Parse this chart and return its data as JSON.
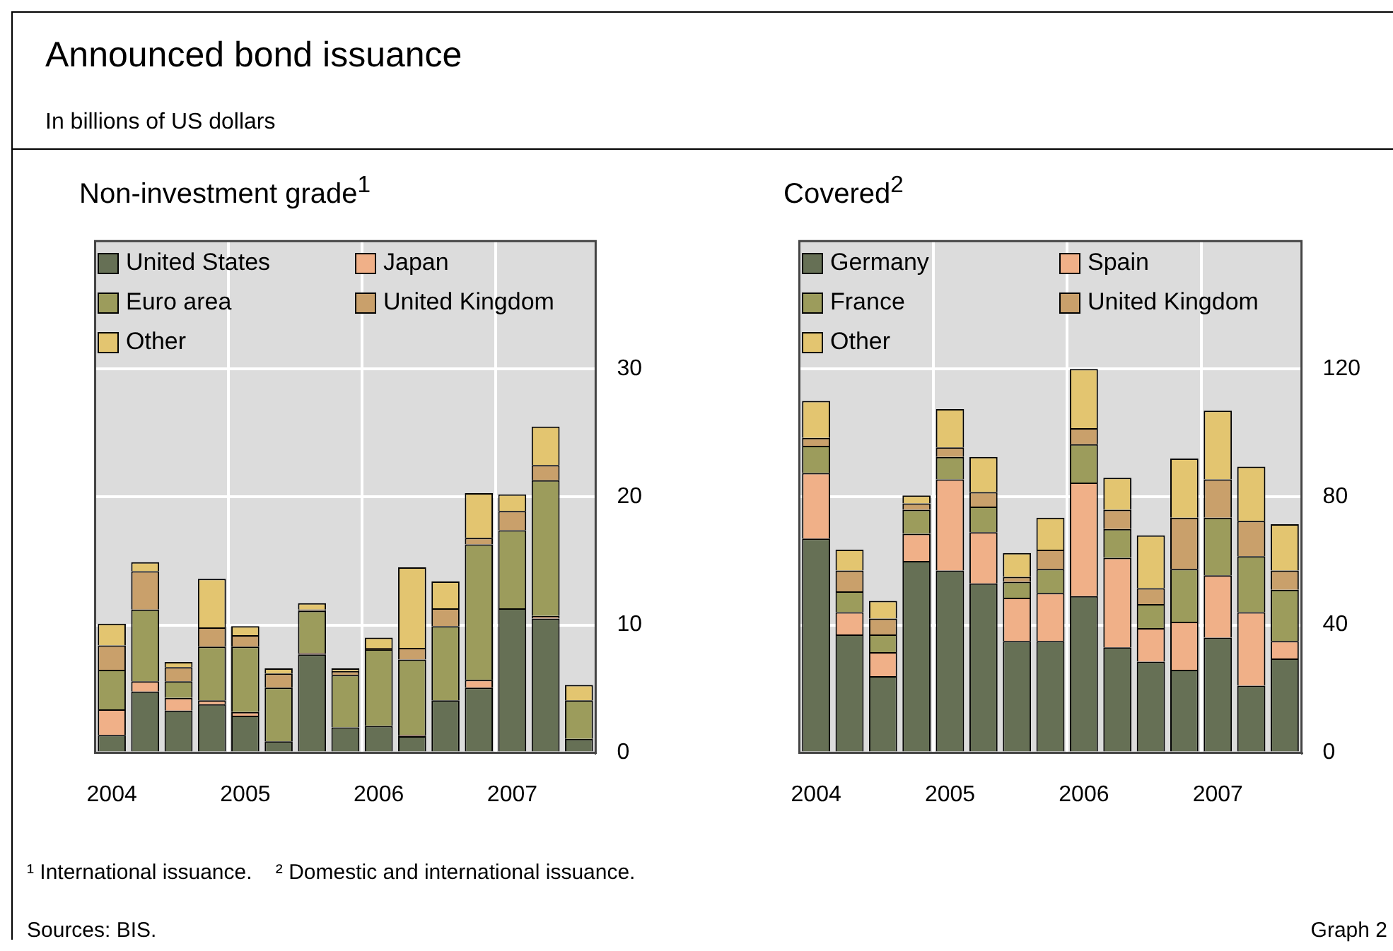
{
  "chart_data": [
    {
      "type": "bar",
      "title": "Non-investment grade$^{1}$",
      "stacked": true,
      "grid": true,
      "legend": "top left",
      "ylim": [
        0,
        40
      ],
      "yticks": [
        0,
        10,
        20,
        30
      ],
      "annotations": [
        "Announced bond issuance",
        "In billions of US dollars",
        "¹ International issuance.    ² Domestic and international issuance."
      ],
      "categories": [
        "2004",
        null,
        null,
        null,
        "2005",
        null,
        null,
        null,
        "2006",
        null,
        null,
        null,
        "2007",
        null,
        null
      ],
      "series": [
        {
          "name": "United States",
          "color": "#667055",
          "values": [
            1.4,
            4.8,
            3.3,
            3.8,
            2.9,
            0.9,
            7.7,
            2.0,
            2.1,
            1.3,
            4.1,
            5.1,
            11.3,
            10.5,
            1.1
          ]
        },
        {
          "name": "Japan",
          "color": "#f0b088",
          "values": [
            2.0,
            0.8,
            1.0,
            0.3,
            0.3,
            0,
            0.1,
            null,
            0,
            0.1,
            0,
            0.6,
            0,
            0.2,
            0
          ]
        },
        {
          "name": "Euro area",
          "color": "#9c9c5c",
          "values": [
            3.1,
            5.6,
            1.3,
            4.2,
            5.1,
            4.2,
            3.3,
            4.1,
            6.0,
            5.9,
            5.8,
            10.6,
            6.1,
            10.6,
            3.0
          ]
        },
        {
          "name": "United Kingdom",
          "color": "#c9a06b",
          "values": [
            1.9,
            3.0,
            1.1,
            1.5,
            0.9,
            1.1,
            0.1,
            0.3,
            0.1,
            0.9,
            1.4,
            0.5,
            1.5,
            1.2,
            0
          ]
        },
        {
          "name": "Other",
          "color": "#e3c570",
          "values": [
            1.7,
            0.7,
            0.4,
            3.8,
            0.7,
            0.4,
            0.5,
            0.2,
            0.8,
            6.3,
            2.1,
            3.5,
            1.3,
            3.0,
            1.2
          ]
        }
      ]
    },
    {
      "type": "bar",
      "title": "Covered$^{2}$",
      "stacked": true,
      "grid": true,
      "legend": "top left",
      "ylim": [
        0,
        160
      ],
      "yticks": [
        0,
        40,
        80,
        120
      ],
      "annotations": [
        "Sources: BIS.",
        "Graph 2"
      ],
      "categories": [
        "2004",
        null,
        null,
        null,
        "2005",
        null,
        null,
        null,
        "2006",
        null,
        null,
        null,
        "2007",
        null,
        null
      ],
      "series": [
        {
          "name": "Germany",
          "color": "#667055",
          "values": [
            67,
            37,
            24,
            60,
            57,
            53,
            35,
            35,
            49,
            33,
            28.5,
            26,
            36,
            21,
            29.5
          ]
        },
        {
          "name": "Spain",
          "color": "#f0b088",
          "values": [
            20.5,
            7,
            7.5,
            8.5,
            28.5,
            16,
            13.5,
            15,
            35.5,
            28,
            10.5,
            15,
            19.5,
            23,
            5.5
          ]
        },
        {
          "name": "France",
          "color": "#9c9c5c",
          "values": [
            8.5,
            6.5,
            5.5,
            7.5,
            7,
            8,
            5,
            7.5,
            12,
            9,
            7.5,
            16.5,
            18,
            17.5,
            16
          ]
        },
        {
          "name": "United Kingdom",
          "color": "#c9a06b",
          "values": [
            2.5,
            6.5,
            5,
            2,
            3,
            4.5,
            1.5,
            6,
            5,
            6,
            5,
            16,
            12,
            11,
            6
          ]
        },
        {
          "name": "Other",
          "color": "#e3c570",
          "values": [
            11.5,
            6.5,
            5.5,
            2.5,
            12,
            11,
            7.5,
            10,
            18.5,
            10,
            16.5,
            18.5,
            21.5,
            17,
            14.5
          ]
        }
      ]
    }
  ]
}
